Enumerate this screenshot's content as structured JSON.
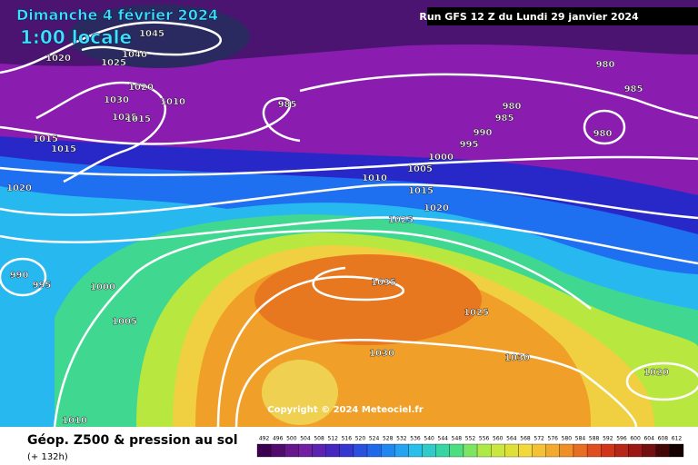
{
  "header": {
    "title": "Dimanche 4 février 2024",
    "time": "1:00 locale",
    "run": "Run GFS 12 Z du Lundi 29 janvier 2024"
  },
  "isobar_labels": [
    1045,
    1020,
    1025,
    1040,
    1020,
    1030,
    1010,
    1025,
    1015,
    985,
    1015,
    1015,
    980,
    985,
    980,
    985,
    990,
    980,
    995,
    1000,
    1005,
    1010,
    1015,
    1020,
    1020,
    1025,
    990,
    995,
    1000,
    1035,
    1025,
    1005,
    1030,
    1030,
    1020,
    1010
  ],
  "copyright": "Copyright © 2024 Meteociel.fr",
  "footer": {
    "product": "Géop. Z500 & pression au sol",
    "lead": "(+ 132h)"
  },
  "legend": {
    "ticks": [
      492,
      496,
      500,
      504,
      508,
      512,
      516,
      520,
      524,
      528,
      532,
      536,
      540,
      544,
      548,
      552,
      556,
      560,
      564,
      568,
      572,
      576,
      580,
      584,
      588,
      592,
      596,
      600,
      604,
      608,
      612
    ]
  }
}
